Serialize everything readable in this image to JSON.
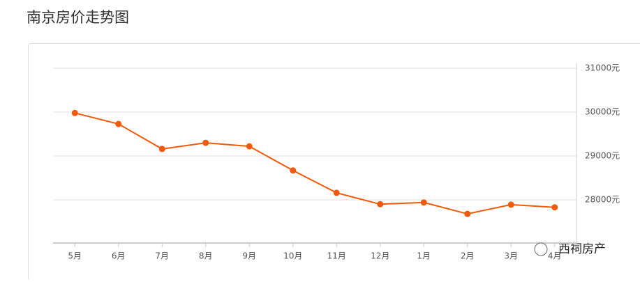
{
  "title": "南京房价走势图",
  "chart_data": {
    "type": "line",
    "categories": [
      "5月",
      "6月",
      "7月",
      "8月",
      "9月",
      "10月",
      "11月",
      "12月",
      "1月",
      "2月",
      "3月",
      "4月"
    ],
    "series": [
      {
        "color": "#f05a0a",
        "values": [
          29980,
          29730,
          29160,
          29300,
          29220,
          28670,
          28160,
          27900,
          27940,
          27680,
          27890,
          27830
        ]
      }
    ],
    "ylim": [
      27000,
      31000
    ],
    "yticks": [
      {
        "value": 28000,
        "label": "28000元"
      },
      {
        "value": 29000,
        "label": "29000元"
      },
      {
        "value": 30000,
        "label": "30000元"
      },
      {
        "value": 31000,
        "label": "31000元"
      }
    ],
    "grid": true
  },
  "watermark": "西祠房产"
}
